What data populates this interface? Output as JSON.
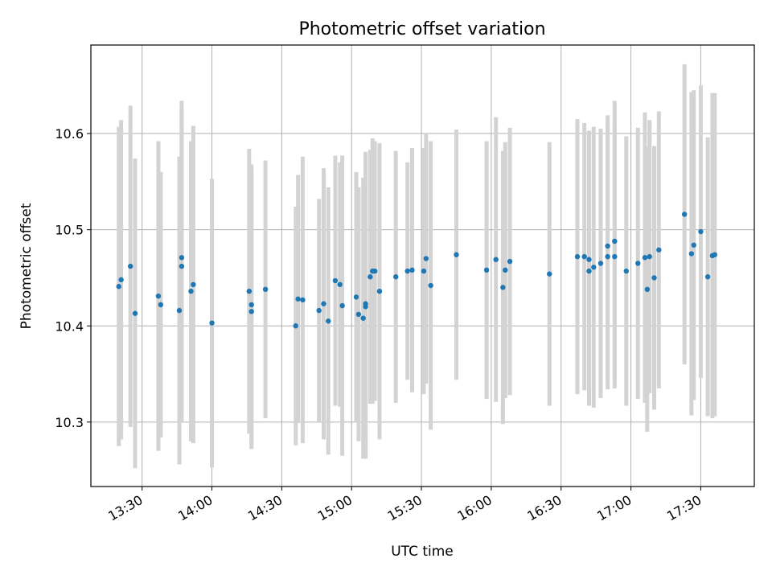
{
  "chart_data": {
    "type": "scatter",
    "title": "Photometric offset variation",
    "xlabel": "UTC time",
    "ylabel": "Photometric offset",
    "x_ticks": [
      "13:30",
      "14:00",
      "14:30",
      "15:00",
      "15:30",
      "16:00",
      "16:30",
      "17:00",
      "17:30"
    ],
    "y_ticks": [
      "10.3",
      "10.4",
      "10.5",
      "10.6"
    ],
    "xlim": [
      "13:08",
      "17:53"
    ],
    "ylim": [
      10.233,
      10.692
    ],
    "grid": true,
    "colors": {
      "points": "#1f77b4",
      "error_bars": "#d3d3d3",
      "grid": "#b0b0b0"
    },
    "x": [
      "13:20",
      "13:21",
      "13:25",
      "13:27",
      "13:37",
      "13:38",
      "13:46",
      "13:47",
      "13:47",
      "13:51",
      "13:52",
      "14:00",
      "14:16",
      "14:17",
      "14:17",
      "14:23",
      "14:36",
      "14:37",
      "14:39",
      "14:46",
      "14:48",
      "14:50",
      "14:53",
      "14:55",
      "14:56",
      "15:02",
      "15:03",
      "15:05",
      "15:06",
      "15:06",
      "15:08",
      "15:09",
      "15:10",
      "15:12",
      "15:19",
      "15:24",
      "15:26",
      "15:31",
      "15:32",
      "15:34",
      "15:45",
      "15:58",
      "16:02",
      "16:05",
      "16:06",
      "16:08",
      "16:25",
      "16:37",
      "16:40",
      "16:42",
      "16:42",
      "16:44",
      "16:47",
      "16:50",
      "16:50",
      "16:53",
      "16:53",
      "16:58",
      "17:03",
      "17:06",
      "17:07",
      "17:08",
      "17:10",
      "17:12",
      "17:23",
      "17:26",
      "17:27",
      "17:30",
      "17:33",
      "17:35",
      "17:36"
    ],
    "y": [
      10.441,
      10.448,
      10.462,
      10.413,
      10.431,
      10.422,
      10.416,
      10.471,
      10.462,
      10.436,
      10.443,
      10.403,
      10.436,
      10.422,
      10.415,
      10.438,
      10.4,
      10.428,
      10.427,
      10.416,
      10.423,
      10.405,
      10.447,
      10.443,
      10.421,
      10.43,
      10.412,
      10.408,
      10.423,
      10.42,
      10.451,
      10.457,
      10.457,
      10.436,
      10.451,
      10.457,
      10.458,
      10.457,
      10.47,
      10.442,
      10.474,
      10.458,
      10.469,
      10.44,
      10.458,
      10.467,
      10.454,
      10.472,
      10.472,
      10.469,
      10.457,
      10.461,
      10.465,
      10.472,
      10.483,
      10.472,
      10.488,
      10.457,
      10.465,
      10.471,
      10.438,
      10.472,
      10.45,
      10.479,
      10.516,
      10.475,
      10.484,
      10.498,
      10.451,
      10.473,
      10.474
    ],
    "y_err": [
      0.166,
      0.166,
      0.167,
      0.161,
      0.161,
      0.138,
      0.16,
      0.163,
      0.162,
      0.156,
      0.165,
      0.15,
      0.148,
      0.146,
      0.143,
      0.134,
      0.124,
      0.129,
      0.149,
      0.116,
      0.141,
      0.139,
      0.13,
      0.127,
      0.156,
      0.13,
      0.132,
      0.146,
      0.158,
      0.158,
      0.132,
      0.138,
      0.135,
      0.154,
      0.131,
      0.113,
      0.127,
      0.128,
      0.13,
      0.15,
      0.13,
      0.134,
      0.148,
      0.142,
      0.133,
      0.139,
      0.137,
      0.143,
      0.139,
      0.134,
      0.14,
      0.146,
      0.14,
      0.138,
      0.136,
      0.137,
      0.146,
      0.14,
      0.141,
      0.151,
      0.148,
      0.142,
      0.137,
      0.144,
      0.156,
      0.168,
      0.161,
      0.152,
      0.145,
      0.169,
      0.168
    ]
  }
}
